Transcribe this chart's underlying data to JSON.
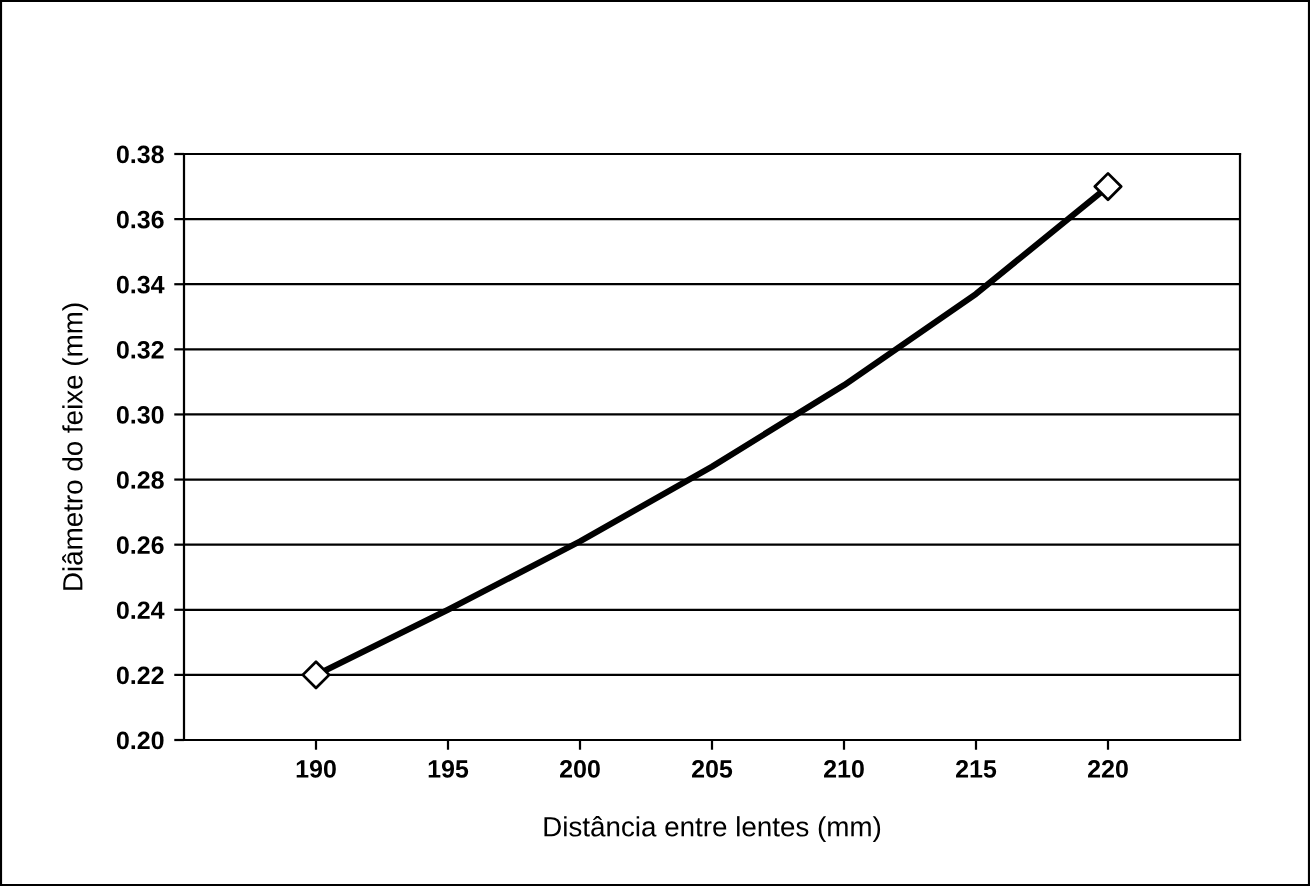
{
  "chart_data": {
    "type": "line",
    "xlabel": "Distância entre lentes (mm)",
    "ylabel": "Diâmetro do feixe (mm)",
    "series": [
      {
        "color": "#000000",
        "marker": "none",
        "x": [
          190,
          195,
          200,
          205,
          210,
          215,
          220
        ],
        "values": [
          0.22,
          0.24,
          0.261,
          0.284,
          0.309,
          0.337,
          0.37
        ]
      },
      {
        "type": "scatter",
        "color": "#000000",
        "marker": "diamond",
        "x": [
          190,
          220
        ],
        "values": [
          0.22,
          0.37
        ]
      }
    ],
    "xlim": [
      185,
      225
    ],
    "xticks": [
      190,
      195,
      200,
      205,
      210,
      215,
      220
    ],
    "ylim": [
      0.2,
      0.38
    ],
    "yticks": [
      {
        "value": 0.2,
        "label": "0.20"
      },
      {
        "value": 0.22,
        "label": "0.22"
      },
      {
        "value": 0.24,
        "label": "0.24"
      },
      {
        "value": 0.26,
        "label": "0.26"
      },
      {
        "value": 0.28,
        "label": "0.28"
      },
      {
        "value": 0.3,
        "label": "0.30"
      },
      {
        "value": 0.32,
        "label": "0.32"
      },
      {
        "value": 0.34,
        "label": "0.34"
      },
      {
        "value": 0.36,
        "label": "0.36"
      },
      {
        "value": 0.38,
        "label": "0.38"
      }
    ],
    "grid": "y"
  }
}
